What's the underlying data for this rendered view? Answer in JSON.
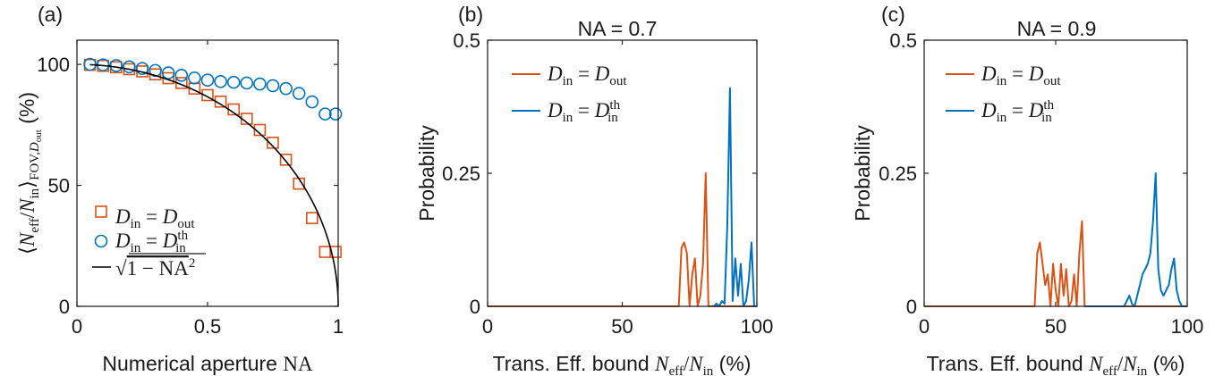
{
  "colors": {
    "orange": "#D95319",
    "blue": "#0072BD",
    "black": "#000000",
    "axis": "#262626"
  },
  "chart_data": [
    {
      "panel": "(a)",
      "type": "scatter",
      "title": "",
      "xlabel": "Numerical aperture NA",
      "ylabel": "⟨N_eff/N_in⟩_FOV,D_out (%)",
      "xlim": [
        0,
        1
      ],
      "ylim": [
        0,
        110
      ],
      "xticks": [
        0,
        0.5,
        1
      ],
      "xtick_labels": [
        "0",
        "0.5",
        "1"
      ],
      "yticks": [
        0,
        50,
        100
      ],
      "ytick_labels": [
        "0",
        "50",
        "100"
      ],
      "grid": false,
      "legend_position": "bottom-left",
      "x": [
        0.05,
        0.1,
        0.15,
        0.2,
        0.25,
        0.3,
        0.35,
        0.4,
        0.45,
        0.5,
        0.55,
        0.6,
        0.65,
        0.7,
        0.75,
        0.8,
        0.85,
        0.9,
        0.95,
        0.99
      ],
      "series": [
        {
          "name": "D_in = D_out",
          "marker": "square",
          "color": "#D95319",
          "values": [
            99.8,
            99.4,
            98.8,
            98.0,
            97.1,
            95.9,
            94.3,
            92.3,
            90.0,
            87.3,
            84.6,
            81.4,
            77.5,
            72.9,
            67.6,
            60.6,
            50.7,
            36.5,
            22.5,
            22.5
          ]
        },
        {
          "name": "D_in = D_in^th",
          "marker": "circle",
          "color": "#0072BD",
          "values": [
            100.0,
            99.8,
            99.5,
            99.0,
            98.3,
            97.5,
            96.5,
            95.5,
            94.4,
            93.5,
            92.9,
            92.6,
            92.3,
            91.9,
            91.2,
            90.0,
            88.0,
            84.5,
            79.5,
            79.5
          ]
        },
        {
          "name": "√(1 − NA²)",
          "marker": "line",
          "color": "#000000",
          "function": "100*sqrt(1-NA^2)"
        }
      ]
    },
    {
      "panel": "(b)",
      "type": "line",
      "title": "NA = 0.7",
      "xlabel": "Trans. Eff. bound N_eff/N_in (%)",
      "ylabel": "Probability",
      "xlim": [
        0,
        100
      ],
      "ylim": [
        0,
        0.5
      ],
      "xticks": [
        0,
        50,
        100
      ],
      "xtick_labels": [
        "0",
        "50",
        "100"
      ],
      "yticks": [
        0,
        0.25,
        0.5
      ],
      "ytick_labels": [
        "0",
        "0.25",
        "0.5"
      ],
      "grid": false,
      "legend_position": "top-left",
      "series": [
        {
          "name": "D_in = D_out",
          "color": "#D95319",
          "x": [
            0,
            71,
            72,
            73,
            74,
            75,
            76,
            77,
            78,
            79,
            80,
            81,
            82,
            83,
            84,
            100
          ],
          "values": [
            0,
            0,
            0.11,
            0.12,
            0.1,
            0,
            0.06,
            0.09,
            0,
            0.02,
            0.08,
            0.25,
            0,
            0,
            0,
            0
          ]
        },
        {
          "name": "D_in = D_in^th",
          "color": "#0072BD",
          "x": [
            84,
            85,
            86,
            87,
            88,
            89,
            90,
            91,
            92,
            93,
            94,
            95,
            96,
            97,
            98,
            99,
            100
          ],
          "values": [
            0,
            0.005,
            0,
            0.01,
            0.005,
            0.15,
            0.41,
            0.01,
            0.09,
            0.02,
            0.08,
            0,
            0.01,
            0.05,
            0.12,
            0,
            0
          ]
        }
      ]
    },
    {
      "panel": "(c)",
      "type": "line",
      "title": "NA = 0.9",
      "xlabel": "Trans. Eff. bound N_eff/N_in (%)",
      "ylabel": "Probability",
      "xlim": [
        0,
        100
      ],
      "ylim": [
        0,
        0.5
      ],
      "xticks": [
        0,
        50,
        100
      ],
      "xtick_labels": [
        "0",
        "50",
        "100"
      ],
      "yticks": [
        0,
        0.25,
        0.5
      ],
      "ytick_labels": [
        "0",
        "0.25",
        "0.5"
      ],
      "grid": false,
      "legend_position": "top-left",
      "series": [
        {
          "name": "D_in = D_out",
          "color": "#D95319",
          "x": [
            0,
            42,
            43,
            44,
            45,
            46,
            47,
            48,
            49,
            50,
            51,
            52,
            53,
            54,
            55,
            56,
            57,
            58,
            59,
            60,
            61,
            100
          ],
          "values": [
            0,
            0,
            0.1,
            0.12,
            0.08,
            0.04,
            0.06,
            0,
            0.08,
            0.03,
            0,
            0.08,
            0.02,
            0.07,
            0,
            0.01,
            0.06,
            0,
            0.1,
            0.16,
            0,
            0
          ]
        },
        {
          "name": "D_in = D_in^th",
          "color": "#0072BD",
          "x": [
            61,
            76,
            77,
            78,
            79,
            80,
            81,
            82,
            83,
            84,
            85,
            86,
            87,
            88,
            89,
            90,
            91,
            92,
            93,
            94,
            95,
            96,
            97,
            98,
            100
          ],
          "values": [
            0,
            0,
            0.01,
            0.02,
            0.005,
            0,
            0.02,
            0.04,
            0.06,
            0.07,
            0.08,
            0.1,
            0.16,
            0.25,
            0.07,
            0.03,
            0.02,
            0.03,
            0.04,
            0.07,
            0.09,
            0.03,
            0.01,
            0,
            0
          ]
        }
      ]
    }
  ]
}
